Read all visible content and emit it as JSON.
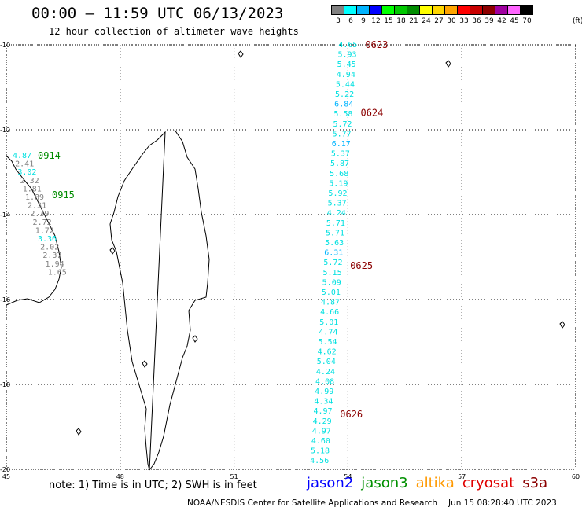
{
  "header": {
    "title": "00:00 – 11:59 UTC 06/13/2023",
    "subtitle": "12 hour collection of altimeter wave heights"
  },
  "legend": {
    "unit": "(ft)",
    "bins": [
      {
        "label": "3",
        "color": "#808080"
      },
      {
        "label": "6",
        "color": "#00ffff"
      },
      {
        "label": "9",
        "color": "#00b4ff"
      },
      {
        "label": "12",
        "color": "#0000ff"
      },
      {
        "label": "15",
        "color": "#00ff00"
      },
      {
        "label": "18",
        "color": "#00c800"
      },
      {
        "label": "21",
        "color": "#008c00"
      },
      {
        "label": "24",
        "color": "#ffff00"
      },
      {
        "label": "27",
        "color": "#ffd700"
      },
      {
        "label": "30",
        "color": "#ffa500"
      },
      {
        "label": "33",
        "color": "#ff0000"
      },
      {
        "label": "36",
        "color": "#c80000"
      },
      {
        "label": "39",
        "color": "#8c0000"
      },
      {
        "label": "42",
        "color": "#a000a0"
      },
      {
        "label": "45",
        "color": "#ff64ff"
      },
      {
        "label": "70",
        "color": "#000000"
      }
    ]
  },
  "map": {
    "lon_range": [
      45,
      60
    ],
    "lat_range": [
      -20,
      -10
    ],
    "lon_ticks": [
      "45",
      "48",
      "51",
      "54",
      "57",
      "60"
    ],
    "lat_ticks": [
      "-10",
      "-12",
      "-14",
      "-16",
      "-18",
      "-20"
    ],
    "tracks": [
      {
        "satellite": "cryosat",
        "lon": [
          54.0,
          53.25
        ],
        "lat": [
          -10.0,
          -19.8
        ],
        "times": [
          {
            "label": "0623",
            "lat": -10.0
          },
          {
            "label": "0624",
            "lat": -11.6
          },
          {
            "label": "0625",
            "lat": -15.2
          },
          {
            "label": "0626",
            "lat": -18.7
          }
        ],
        "heights": [
          "4.65",
          "5.93",
          "5.45",
          "4.94",
          "5.44",
          "5.22",
          "6.84",
          "5.58",
          "5.72",
          "5.77",
          "6.17",
          "5.37",
          "5.87",
          "5.68",
          "5.19",
          "5.92",
          "5.37",
          "4.24",
          "5.71",
          "5.71",
          "5.63",
          "6.31",
          "5.72",
          "5.15",
          "5.09",
          "5.01",
          "4.87",
          "4.66",
          "5.01",
          "4.74",
          "5.54",
          "4.62",
          "5.04",
          "4.24",
          "4.08",
          "4.99",
          "4.34",
          "4.97",
          "4.29",
          "4.97",
          "4.60",
          "5.18",
          "4.56"
        ]
      },
      {
        "satellite": "jason3",
        "times": [
          {
            "label": "0914",
            "lat": -12.65
          },
          {
            "label": "0915",
            "lat": -13.55
          }
        ],
        "heights": [
          "4.87",
          "2.41",
          "3.02",
          "2.32",
          "1.81",
          "1.89",
          "2.31",
          "2.39",
          "2.72",
          "1.72",
          "3.36",
          "2.02",
          "2.37",
          "1.94",
          "1.65"
        ]
      }
    ]
  },
  "note": "note:  1) Time is in UTC; 2) SWH is in feet",
  "satellites": [
    {
      "name": "jason2",
      "color": "#0000ff"
    },
    {
      "name": "jason3",
      "color": "#009000"
    },
    {
      "name": "altika",
      "color": "#ff9900"
    },
    {
      "name": "cryosat",
      "color": "#e00000"
    },
    {
      "name": "s3a",
      "color": "#8b0000"
    }
  ],
  "footer": {
    "credit": "NOAA/NESDIS Center for Satellite Applications and Research",
    "timestamp": "Jun 15 08:28:40 UTC 2023"
  }
}
